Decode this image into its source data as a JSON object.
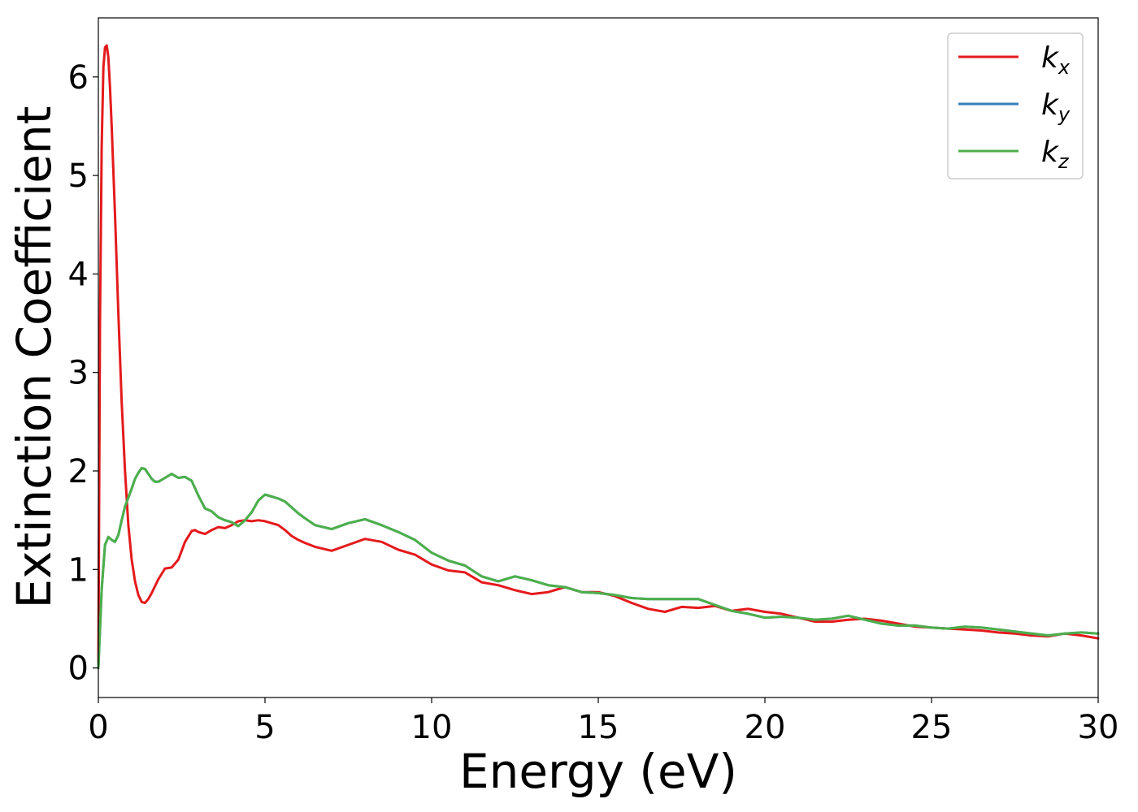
{
  "chart_data": {
    "type": "line",
    "xlabel": "Energy (eV)",
    "ylabel": "Extinction Coefficient",
    "xlim": [
      0,
      30
    ],
    "ylim": [
      -0.3,
      6.6
    ],
    "xticks": [
      0,
      5,
      10,
      15,
      20,
      25,
      30
    ],
    "yticks": [
      0,
      1,
      2,
      3,
      4,
      5,
      6
    ],
    "grid": false,
    "legend_position": "top-right",
    "series": [
      {
        "name": "k_x",
        "legend_base": "k",
        "legend_sub": "x",
        "color": "#e41a1c",
        "x": [
          0,
          0.05,
          0.1,
          0.15,
          0.2,
          0.25,
          0.3,
          0.35,
          0.4,
          0.5,
          0.6,
          0.7,
          0.8,
          0.9,
          1.0,
          1.1,
          1.2,
          1.3,
          1.4,
          1.5,
          1.6,
          1.8,
          2.0,
          2.2,
          2.4,
          2.6,
          2.8,
          2.9,
          3.0,
          3.2,
          3.4,
          3.6,
          3.8,
          4.0,
          4.2,
          4.4,
          4.6,
          4.8,
          5.0,
          5.2,
          5.4,
          5.6,
          5.8,
          6.0,
          6.2,
          6.5,
          7.0,
          7.5,
          8.0,
          8.5,
          9.0,
          9.5,
          10.0,
          10.5,
          11.0,
          11.5,
          12.0,
          12.5,
          13.0,
          13.5,
          14.0,
          14.5,
          15.0,
          15.5,
          16.0,
          16.5,
          17.0,
          17.5,
          18.0,
          18.5,
          19.0,
          19.5,
          20.0,
          20.5,
          21.0,
          21.5,
          22.0,
          22.5,
          23.0,
          23.5,
          24.0,
          24.5,
          25.0,
          25.5,
          26.0,
          26.5,
          27.0,
          27.5,
          28.0,
          28.5,
          29.0,
          29.5,
          30.0
        ],
        "values": [
          0.0,
          3.5,
          5.3,
          6.1,
          6.3,
          6.32,
          6.2,
          5.9,
          5.5,
          4.6,
          3.6,
          2.7,
          2.0,
          1.45,
          1.1,
          0.88,
          0.74,
          0.67,
          0.66,
          0.7,
          0.76,
          0.9,
          1.01,
          1.02,
          1.1,
          1.28,
          1.39,
          1.4,
          1.38,
          1.36,
          1.4,
          1.43,
          1.42,
          1.45,
          1.49,
          1.5,
          1.49,
          1.5,
          1.49,
          1.47,
          1.45,
          1.4,
          1.34,
          1.3,
          1.27,
          1.23,
          1.19,
          1.25,
          1.31,
          1.28,
          1.2,
          1.15,
          1.05,
          0.99,
          0.97,
          0.87,
          0.84,
          0.79,
          0.75,
          0.77,
          0.82,
          0.77,
          0.77,
          0.73,
          0.66,
          0.6,
          0.57,
          0.62,
          0.61,
          0.63,
          0.58,
          0.6,
          0.57,
          0.55,
          0.51,
          0.47,
          0.47,
          0.49,
          0.5,
          0.48,
          0.45,
          0.42,
          0.41,
          0.4,
          0.39,
          0.38,
          0.36,
          0.35,
          0.33,
          0.32,
          0.35,
          0.33,
          0.3
        ]
      },
      {
        "name": "k_y",
        "legend_base": "k",
        "legend_sub": "y",
        "color": "#377eb8",
        "x": [
          0,
          0.1,
          0.2,
          0.3,
          0.4,
          0.5,
          0.6,
          0.7,
          0.8,
          0.9,
          1.0,
          1.1,
          1.2,
          1.3,
          1.4,
          1.5,
          1.6,
          1.7,
          1.8,
          2.0,
          2.2,
          2.4,
          2.6,
          2.8,
          3.0,
          3.2,
          3.4,
          3.6,
          3.8,
          4.0,
          4.2,
          4.4,
          4.6,
          4.8,
          5.0,
          5.2,
          5.4,
          5.6,
          5.8,
          6.0,
          6.2,
          6.5,
          7.0,
          7.5,
          8.0,
          8.5,
          9.0,
          9.5,
          10.0,
          10.5,
          11.0,
          11.5,
          12.0,
          12.5,
          13.0,
          13.5,
          14.0,
          14.5,
          15.0,
          15.5,
          16.0,
          16.5,
          17.0,
          17.5,
          18.0,
          18.5,
          19.0,
          19.5,
          20.0,
          20.5,
          21.0,
          21.5,
          22.0,
          22.5,
          23.0,
          23.5,
          24.0,
          24.5,
          25.0,
          25.5,
          26.0,
          26.5,
          27.0,
          27.5,
          28.0,
          28.5,
          29.0,
          29.5,
          30.0
        ],
        "values": [
          0.0,
          0.8,
          1.25,
          1.33,
          1.3,
          1.28,
          1.35,
          1.5,
          1.64,
          1.73,
          1.82,
          1.92,
          1.98,
          2.03,
          2.02,
          1.97,
          1.92,
          1.89,
          1.89,
          1.93,
          1.97,
          1.93,
          1.94,
          1.9,
          1.75,
          1.62,
          1.59,
          1.53,
          1.5,
          1.48,
          1.44,
          1.5,
          1.58,
          1.7,
          1.76,
          1.74,
          1.72,
          1.69,
          1.63,
          1.57,
          1.52,
          1.45,
          1.41,
          1.47,
          1.51,
          1.45,
          1.38,
          1.3,
          1.17,
          1.09,
          1.04,
          0.93,
          0.88,
          0.93,
          0.89,
          0.84,
          0.82,
          0.77,
          0.76,
          0.74,
          0.71,
          0.7,
          0.7,
          0.7,
          0.7,
          0.64,
          0.58,
          0.55,
          0.51,
          0.52,
          0.51,
          0.49,
          0.5,
          0.53,
          0.49,
          0.45,
          0.43,
          0.43,
          0.41,
          0.4,
          0.42,
          0.41,
          0.39,
          0.37,
          0.35,
          0.33,
          0.35,
          0.36,
          0.35
        ]
      },
      {
        "name": "k_z",
        "legend_base": "k",
        "legend_sub": "z",
        "color": "#4daf4a",
        "x": [
          0,
          0.1,
          0.2,
          0.3,
          0.4,
          0.5,
          0.6,
          0.7,
          0.8,
          0.9,
          1.0,
          1.1,
          1.2,
          1.3,
          1.4,
          1.5,
          1.6,
          1.7,
          1.8,
          2.0,
          2.2,
          2.4,
          2.6,
          2.8,
          3.0,
          3.2,
          3.4,
          3.6,
          3.8,
          4.0,
          4.2,
          4.4,
          4.6,
          4.8,
          5.0,
          5.2,
          5.4,
          5.6,
          5.8,
          6.0,
          6.2,
          6.5,
          7.0,
          7.5,
          8.0,
          8.5,
          9.0,
          9.5,
          10.0,
          10.5,
          11.0,
          11.5,
          12.0,
          12.5,
          13.0,
          13.5,
          14.0,
          14.5,
          15.0,
          15.5,
          16.0,
          16.5,
          17.0,
          17.5,
          18.0,
          18.5,
          19.0,
          19.5,
          20.0,
          20.5,
          21.0,
          21.5,
          22.0,
          22.5,
          23.0,
          23.5,
          24.0,
          24.5,
          25.0,
          25.5,
          26.0,
          26.5,
          27.0,
          27.5,
          28.0,
          28.5,
          29.0,
          29.5,
          30.0
        ],
        "values": [
          0.0,
          0.8,
          1.25,
          1.33,
          1.3,
          1.28,
          1.35,
          1.5,
          1.64,
          1.73,
          1.82,
          1.92,
          1.98,
          2.03,
          2.02,
          1.97,
          1.92,
          1.89,
          1.89,
          1.93,
          1.97,
          1.93,
          1.94,
          1.9,
          1.75,
          1.62,
          1.59,
          1.53,
          1.5,
          1.48,
          1.44,
          1.5,
          1.58,
          1.7,
          1.76,
          1.74,
          1.72,
          1.69,
          1.63,
          1.57,
          1.52,
          1.45,
          1.41,
          1.47,
          1.51,
          1.45,
          1.38,
          1.3,
          1.17,
          1.09,
          1.04,
          0.93,
          0.88,
          0.93,
          0.89,
          0.84,
          0.82,
          0.77,
          0.76,
          0.74,
          0.71,
          0.7,
          0.7,
          0.7,
          0.7,
          0.64,
          0.58,
          0.55,
          0.51,
          0.52,
          0.51,
          0.49,
          0.5,
          0.53,
          0.49,
          0.45,
          0.43,
          0.43,
          0.41,
          0.4,
          0.42,
          0.41,
          0.39,
          0.37,
          0.35,
          0.33,
          0.35,
          0.36,
          0.35
        ]
      }
    ]
  }
}
